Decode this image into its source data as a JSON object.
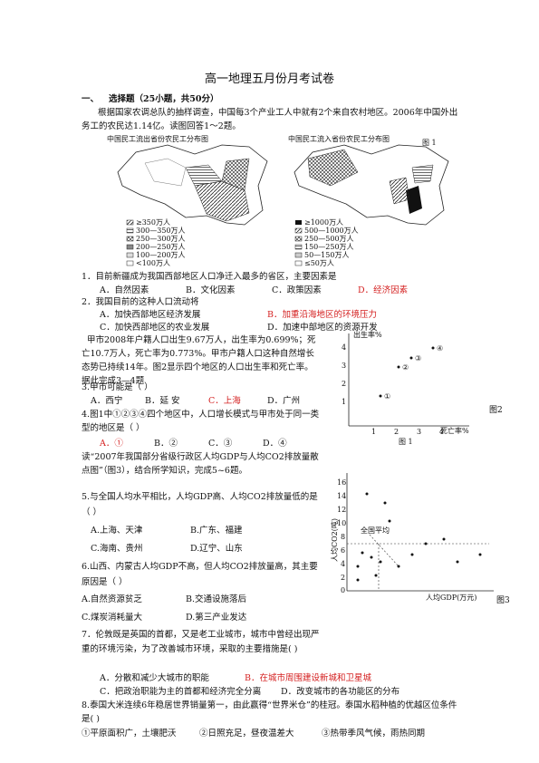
{
  "header": {
    "title": "高一地理五月份月考试卷"
  },
  "section": {
    "number": "一、",
    "title": "选择题（25小题，共50分）"
  },
  "intro": "根据国家农调总队的抽样调查，中国每3个产业工人中就有2个来自农村地区。2006年中国外出务工的农民达1.14亿。读图回答1～2题。",
  "figure1": {
    "caption": "图 1",
    "left_map": {
      "title": "中国民工流出省份农民工分布图",
      "legend": [
        "≥350万人",
        "300—350万人",
        "250—300万人",
        "200—250万人",
        "100—200万人",
        "<100万人"
      ]
    },
    "right_map": {
      "title": "中国民工流入省份农民工分布图",
      "legend": [
        "≥1000万人",
        "500—1000万人",
        "250—500万人",
        "150—250万人",
        "50—150万人",
        "≤50万人"
      ]
    }
  },
  "questions": [
    {
      "stem": "1．目前新疆成为我国西部地区人口净迁入最多的省区，主要因素是",
      "options": [
        "A．自然因素",
        "B．文化因素",
        "C．政策因素",
        "D．经济因素"
      ]
    },
    {
      "stem": "2．我国目前的这种人口流动将",
      "options": [
        "A．加快西部地区经济发展",
        "B．加重沿海地区的环境压力",
        "C．加快西部地区的农业发展",
        "D．加速中部地区的资源开发"
      ]
    },
    {
      "stem": "3.甲市可能是（    ）",
      "options": [
        "A．西宁",
        "B．延 安",
        "C．上海",
        "D．广州"
      ]
    },
    {
      "stem": "4.图1中①②③④四个地区中，人口增长模式与甲市处于同一类型的地区是（      ）",
      "options": [
        "A．①",
        "B．②",
        "C．③",
        "D．④"
      ]
    },
    {
      "stem": "5.与全国人均水平相比，人均GDP高、人均CO2排放量低的是（ ）",
      "options": [
        "A.上海、天津",
        "B.广东、福建",
        "C.海南、贵州",
        "D.辽宁、山东"
      ]
    },
    {
      "stem": "6.山西、内蒙古人均GDP不高，但人均CO2排放量高，其主要原因是（   ）",
      "options": [
        "A.自然资源贫乏",
        "B.交通设施落后",
        "C.煤炭消耗量大",
        "D.第三产业发达"
      ]
    },
    {
      "stem": "7．伦敦既是英国的首都，又是老工业城市，城市中曾经出现严重的环境污染，为了改善城市环境，采取的主要措施是(     )",
      "options": [
        "A．分散和减少大城市的职能",
        "B．在城市周围建设新城和卫星城",
        "C．把政治职能为主的首都和经济完全分离",
        "D．改变城市的各功能区的分布"
      ]
    },
    {
      "stem": "8.泰国大米连续6年稳居世界销量第一，由此赢得“世界米仓”的桂冠。泰国水稻种植的优越区位条件是(     )",
      "options": [
        "①平原面积广，土壤肥沃",
        "②日照充足，昼夜温差大",
        "③热带季风气候，雨热同期"
      ]
    }
  ],
  "passage_a": "甲市2008年户籍人口出生9.67万人，出生率为0.699%；死亡10.7万人，死亡率为0.773%。甲市户籍人口这种自然增长态势已持续14年。图2显示四个地区的人口出生率和死亡率。据此完成3—4题",
  "passage_b": "读“2007年我国部分省级行政区人均GDP与人均CO2排放量散点图”（图3），结合所学知识，完成5~6题。",
  "figure2": {
    "caption": "图2",
    "sub_caption": "图 1",
    "y_label": "出生率%",
    "x_label": "死亡率%",
    "yticks": [
      "4",
      "3",
      "2",
      "1"
    ],
    "xticks": [
      "1",
      "2",
      "3",
      "4"
    ],
    "points": [
      "①",
      "②",
      "③",
      "④"
    ]
  },
  "figure3": {
    "caption": "图3",
    "y_label": "人均CO2(吨)",
    "x_label": "人均GDP(万元)",
    "yticks": [
      "16",
      "14",
      "12",
      "10",
      "8",
      "6",
      "4",
      "2",
      "0"
    ],
    "annotation": "全国平均"
  }
}
